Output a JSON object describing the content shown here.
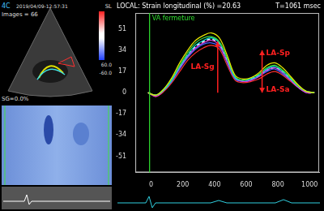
{
  "chart_data": {
    "type": "line",
    "title": "LOCAL: Strain longitudinal (%) =20.63",
    "subtitle": "T=1061 msec",
    "x": [
      -20,
      30,
      80,
      130,
      180,
      230,
      280,
      330,
      380,
      430,
      480,
      530,
      580,
      630,
      680,
      730,
      780,
      830,
      880,
      930,
      980,
      1030
    ],
    "series": [
      {
        "color": "#e8e800",
        "line_style": "solid",
        "values": [
          0,
          -2,
          3,
          12,
          24,
          34,
          42,
          46,
          48,
          44,
          30,
          14,
          11,
          12,
          16,
          22,
          24,
          20,
          13,
          6,
          1,
          0
        ]
      },
      {
        "color": "#40e040",
        "line_style": "solid",
        "values": [
          0,
          -2,
          3,
          11,
          22,
          32,
          40,
          44,
          45,
          41,
          28,
          13,
          10,
          12,
          15,
          20,
          22,
          18,
          12,
          5,
          1,
          0
        ]
      },
      {
        "color": "#00e0e0",
        "line_style": "solid",
        "values": [
          0,
          -2,
          2,
          10,
          21,
          30,
          38,
          42,
          44,
          40,
          27,
          12,
          10,
          11,
          14,
          19,
          21,
          17,
          11,
          5,
          1,
          0
        ]
      },
      {
        "color": "#e040e0",
        "line_style": "solid",
        "values": [
          0,
          -3,
          2,
          10,
          20,
          29,
          36,
          40,
          42,
          38,
          25,
          12,
          9,
          10,
          13,
          18,
          20,
          16,
          10,
          4,
          0,
          0
        ]
      },
      {
        "color": "#4060ff",
        "line_style": "solid",
        "values": [
          0,
          -2,
          2,
          9,
          19,
          28,
          35,
          39,
          40,
          37,
          24,
          11,
          9,
          10,
          13,
          17,
          19,
          15,
          10,
          4,
          0,
          0
        ]
      },
      {
        "color": "#ff3030",
        "line_style": "solid",
        "values": [
          0,
          -3,
          1,
          8,
          17,
          26,
          32,
          36,
          38,
          35,
          22,
          10,
          8,
          9,
          11,
          15,
          17,
          14,
          9,
          4,
          0,
          0
        ]
      },
      {
        "color": "#ffffff",
        "line_style": "dashed",
        "values": [
          0,
          -2,
          2,
          10,
          20,
          30,
          37,
          41,
          43,
          39,
          26,
          12,
          10,
          11,
          14,
          18,
          20,
          17,
          11,
          5,
          1,
          0
        ]
      }
    ],
    "xlim": [
      -100,
      1060
    ],
    "xticks": [
      0,
      200,
      400,
      600,
      800,
      1000
    ],
    "ylim": [
      -64,
      64
    ],
    "yticks": [
      -51,
      -34,
      -17,
      0,
      17,
      34,
      51
    ],
    "grid": false,
    "vlines": [
      {
        "x": -10,
        "label": "VA fermeture",
        "color": "#30e030"
      }
    ],
    "annotations": [
      {
        "text": "LA-Sg",
        "x": 420,
        "y_from": 0,
        "y_to": 41,
        "color": "#ff2020"
      },
      {
        "text": "LA-Sp",
        "x": 700,
        "y_from": 14,
        "y_to": 34,
        "color": "#ff2020"
      },
      {
        "text": "LA-Sa",
        "x": 700,
        "y_from": 14,
        "y_to": 0,
        "color": "#ff2020"
      }
    ]
  },
  "screen": {
    "view": "4C",
    "images": "Images = 66",
    "timestamp": "2019/04/09-12:57:31",
    "scale_unit": "SL",
    "scale_max": "60.0",
    "scale_min": "-60.0",
    "sg": "SG=0.0%"
  }
}
